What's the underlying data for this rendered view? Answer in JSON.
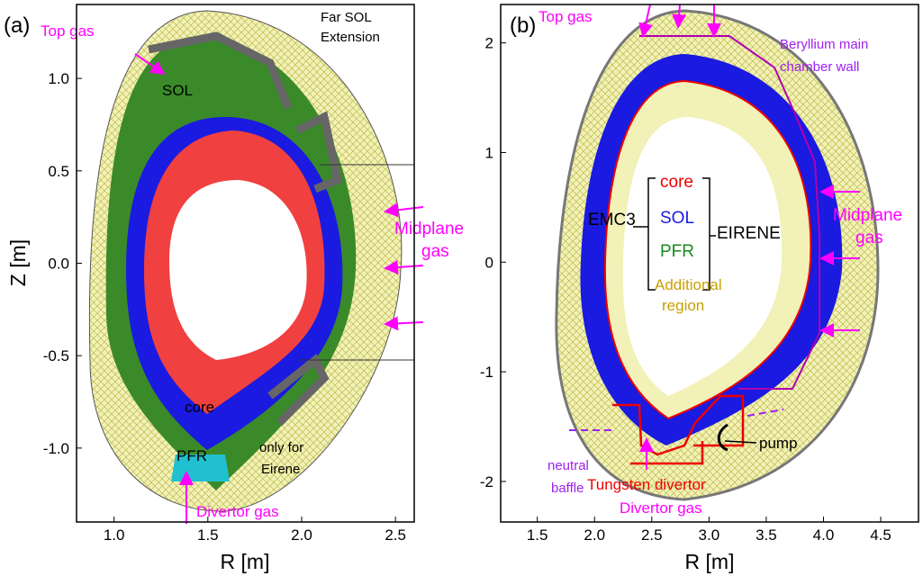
{
  "panels": [
    {
      "label": "(a)",
      "xlabel": "R [m]",
      "ylabel": "Z [m]",
      "xlim": [
        0.8,
        2.6
      ],
      "ylim": [
        -1.4,
        1.4
      ],
      "xticks": [
        {
          "value": 1.0,
          "label": "1.0"
        },
        {
          "value": 1.5,
          "label": "1.5"
        },
        {
          "value": 2.0,
          "label": "2.0"
        },
        {
          "value": 2.5,
          "label": "2.5"
        }
      ],
      "yticks": [
        {
          "value": 1.0,
          "label": "1.0"
        },
        0.5,
        {
          "value": 0.0,
          "label": "0.0"
        },
        -0.5,
        {
          "value": -1.0,
          "label": "-1.0"
        }
      ],
      "annotations": [
        "Top gas",
        "Far SOL",
        "Extension",
        "SOL",
        "Midplane",
        "gas",
        "core",
        "PFR",
        "only for",
        "Eirene",
        "Divertor gas"
      ]
    },
    {
      "label": "(b)",
      "xlabel": "R [m]",
      "xlim": [
        1.18,
        4.83
      ],
      "ylim": [
        -2.37,
        2.35
      ],
      "xticks": [
        1.5,
        {
          "value": 2.0,
          "label": "2.0"
        },
        2.5,
        {
          "value": 3.0,
          "label": "3.0"
        },
        3.5,
        {
          "value": 4.0,
          "label": "4.0"
        },
        4.5
      ],
      "yticks": [
        2,
        1,
        0,
        -1,
        -2
      ],
      "annotations": [
        "Top gas",
        "Beryllium main",
        "chamber wall",
        "EMC3",
        "core",
        "SOL",
        "PFR",
        "Additional",
        "region",
        "EIRENE",
        "Midplane",
        "gas",
        "pump",
        "neutral",
        "baffle",
        "Tungsten divertor",
        "Divertor gas"
      ]
    }
  ]
}
